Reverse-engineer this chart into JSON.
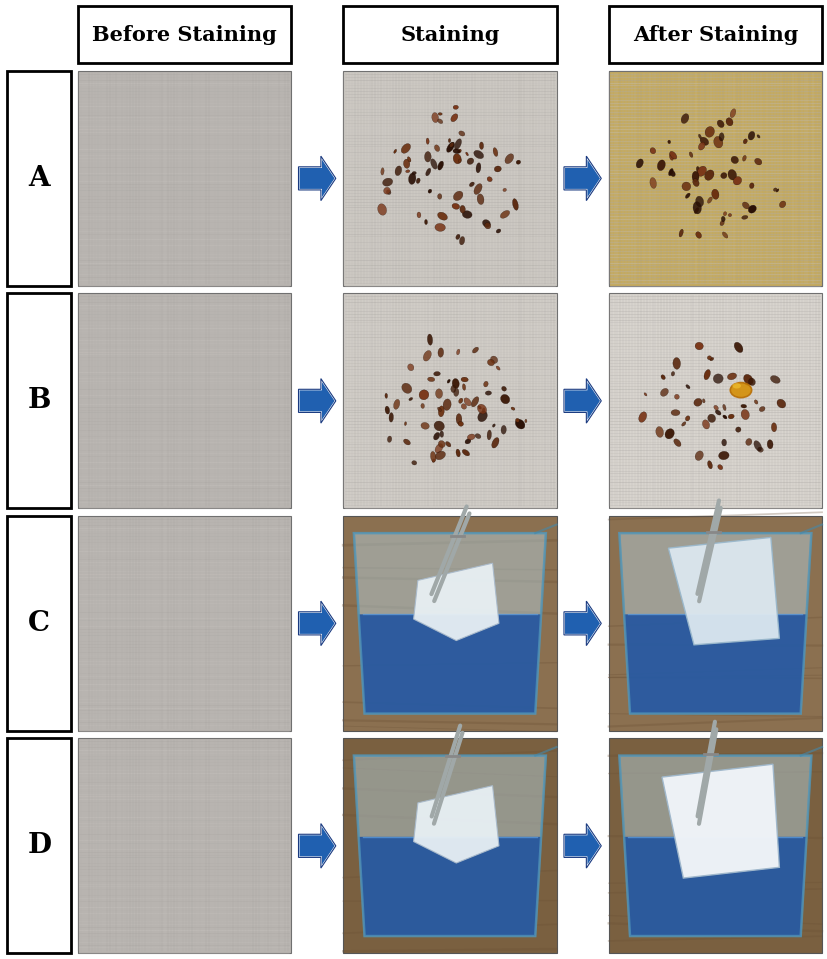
{
  "col_headers": [
    "Before Staining",
    "Staining",
    "After Staining"
  ],
  "row_labels": [
    "A",
    "B",
    "C",
    "D"
  ],
  "header_font_size": 15,
  "label_font_size": 20,
  "background_color": "#ffffff",
  "border_color": "#000000",
  "arrow_color_fill": "#2060b0",
  "arrow_color_edge": "#1040a0",
  "figure_width": 8.27,
  "figure_height": 9.59,
  "dpi": 100,
  "fabric_colors": {
    "base": "#c0bcb8",
    "light": "#d0ccc8",
    "dark": "#a8a4a0"
  },
  "coffee_colors": {
    "dark": "#3d1a08",
    "mid": "#5c2a10",
    "light": "#8b4513"
  },
  "stain_bg_A": "#d8c890",
  "water_bead": "#c89020",
  "beaker_bg_C_stain": "#8b7355",
  "beaker_bg_C_after": "#8b7355",
  "beaker_bg_D_stain": "#7a6545",
  "beaker_bg_D_after": "#7a6545",
  "blue_liquid": "#1a4a9a",
  "blue_liquid_light": "#3a7aCC"
}
